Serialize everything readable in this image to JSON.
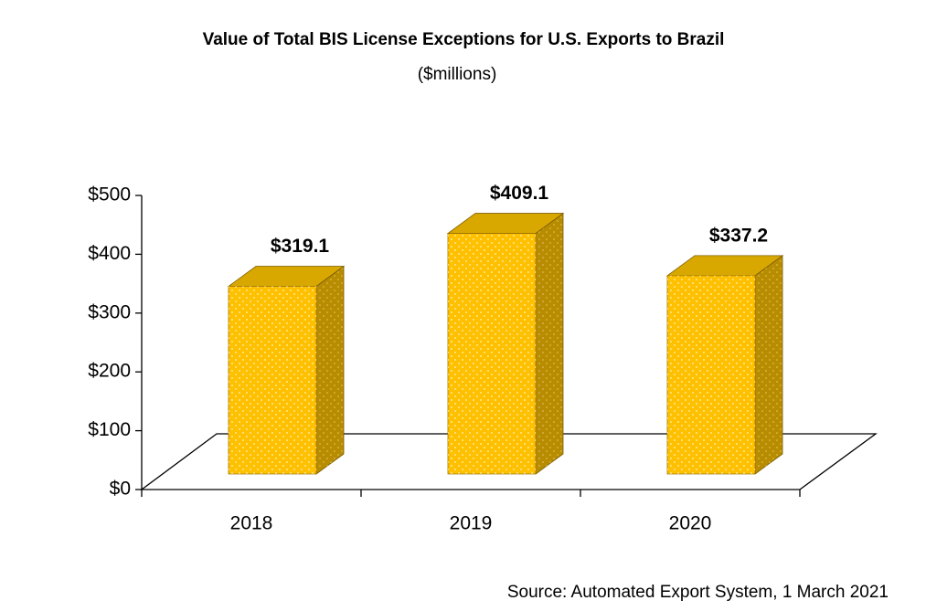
{
  "chart_data": {
    "type": "bar3d",
    "title": "Value of Total BIS License Exceptions for U.S. Exports to Brazil",
    "subtitle": "($millions)",
    "categories": [
      "2018",
      "2019",
      "2020"
    ],
    "values": [
      319.1,
      409.1,
      337.2
    ],
    "value_labels": [
      "$319.1",
      "$409.1",
      "$337.2"
    ],
    "color": "#ffc000",
    "ylim": [
      0,
      500
    ],
    "yticks": [
      {
        "value": 0,
        "label": "$0"
      },
      {
        "value": 100,
        "label": "$100"
      },
      {
        "value": 200,
        "label": "$200"
      },
      {
        "value": 300,
        "label": "$300"
      },
      {
        "value": 400,
        "label": "$400"
      },
      {
        "value": 500,
        "label": "$500"
      }
    ],
    "source": "Source: Automated Export System, 1 March 2021"
  }
}
